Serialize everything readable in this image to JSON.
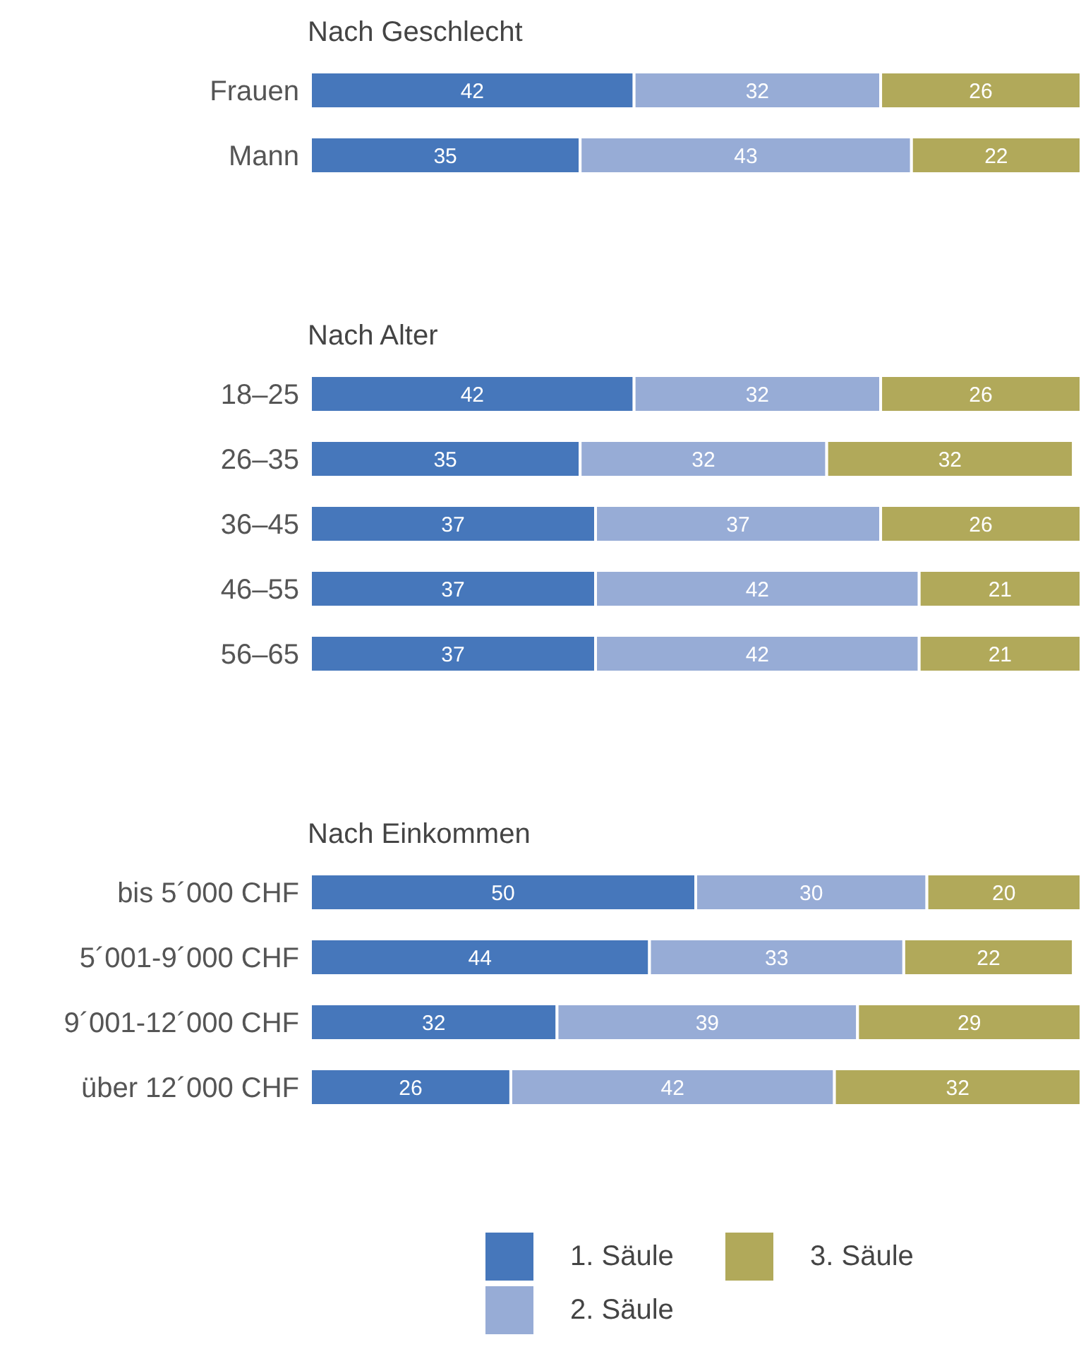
{
  "chart_data": [
    {
      "type": "bar",
      "title": "Nach Geschlecht",
      "orientation": "horizontal",
      "stacked": true,
      "data_labels": true,
      "tick_labels": "y",
      "categories": [
        "Frauen",
        "Mann"
      ],
      "series": [
        {
          "color": "#4677bb",
          "values": [
            42,
            35
          ]
        },
        {
          "color": "#97acd6",
          "values": [
            32,
            43
          ]
        },
        {
          "color": "#b1a95a",
          "values": [
            26,
            22
          ]
        }
      ]
    },
    {
      "type": "bar",
      "title": "Nach Alter",
      "orientation": "horizontal",
      "stacked": true,
      "data_labels": true,
      "tick_labels": "y",
      "categories": [
        "18–25",
        "26–35",
        "36–45",
        "46–55",
        "56–65"
      ],
      "series": [
        {
          "color": "#4677bb",
          "values": [
            42,
            35,
            37,
            37,
            37
          ]
        },
        {
          "color": "#97acd6",
          "values": [
            32,
            32,
            37,
            42,
            42
          ]
        },
        {
          "color": "#b1a95a",
          "values": [
            26,
            32,
            26,
            21,
            21
          ]
        }
      ]
    },
    {
      "type": "bar",
      "title": "Nach Einkommen",
      "orientation": "horizontal",
      "stacked": true,
      "data_labels": true,
      "tick_labels": "y",
      "legend": "bottom",
      "categories": [
        "bis 5´000 CHF",
        "5´001-9´000 CHF",
        "9´001-12´000 CHF",
        "über 12´000 CHF"
      ],
      "series": [
        {
          "name": "1. Säule",
          "color": "#4677bb",
          "values": [
            50,
            44,
            32,
            26
          ]
        },
        {
          "name": "2. Säule",
          "color": "#97acd6",
          "values": [
            30,
            33,
            39,
            42
          ]
        },
        {
          "name": "3. Säule",
          "color": "#b1a95a",
          "values": [
            20,
            22,
            29,
            32
          ]
        }
      ]
    }
  ]
}
